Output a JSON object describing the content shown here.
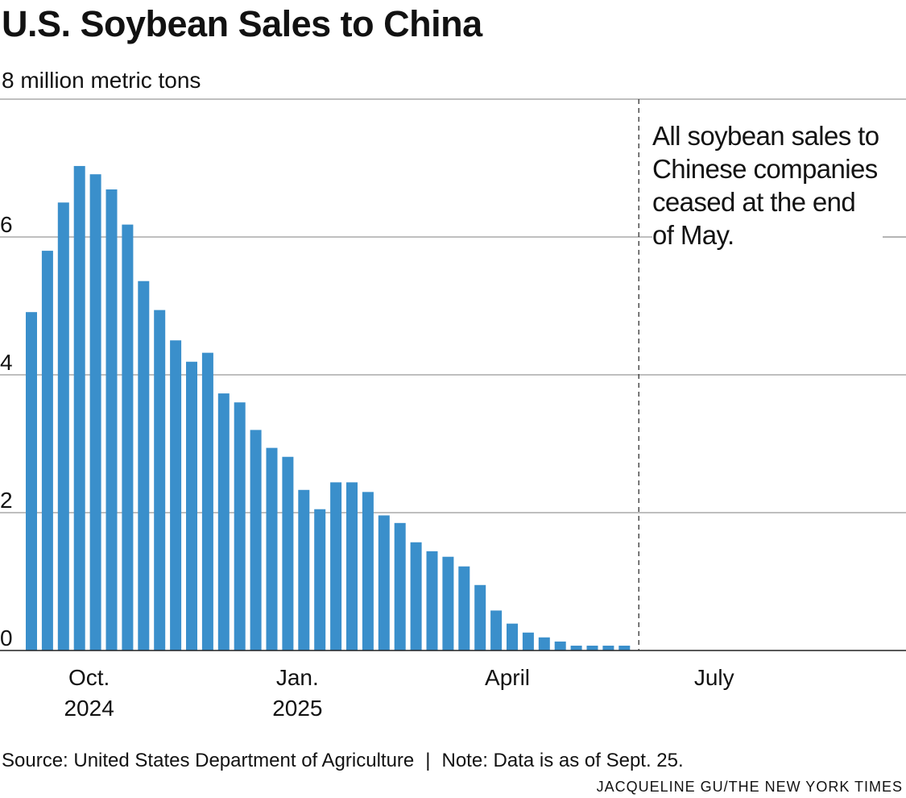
{
  "title": "U.S. Soybean Sales to China",
  "source": "Source: United States Department of Agriculture",
  "note": "Note: Data is as of Sept. 25.",
  "credit": "JACQUELINE GU/THE NEW YORK TIMES",
  "chart_data": {
    "type": "bar",
    "title": "U.S. Soybean Sales to China",
    "ylabel": "8 million metric tons",
    "ylim": [
      0,
      8
    ],
    "yticks": [
      {
        "value": 0,
        "label": "0"
      },
      {
        "value": 2,
        "label": "2"
      },
      {
        "value": 4,
        "label": "4"
      },
      {
        "value": 6,
        "label": "6"
      },
      {
        "value": 8,
        "label": "8 million metric tons"
      }
    ],
    "grid": true,
    "bar_color": "#3a8fcb",
    "x_unit": "week",
    "xticks": [
      {
        "week": 3.6,
        "line1": "Oct.",
        "line2": "2024"
      },
      {
        "week": 16.6,
        "line1": "Jan.",
        "line2": "2025"
      },
      {
        "week": 29.7,
        "line1": "April",
        "line2": ""
      },
      {
        "week": 42.6,
        "line1": "July",
        "line2": ""
      }
    ],
    "values": [
      4.91,
      5.8,
      6.5,
      7.03,
      6.91,
      6.69,
      6.18,
      5.36,
      4.94,
      4.5,
      4.19,
      4.32,
      3.73,
      3.6,
      3.2,
      2.94,
      2.81,
      2.33,
      2.05,
      2.44,
      2.44,
      2.3,
      1.96,
      1.85,
      1.57,
      1.44,
      1.36,
      1.22,
      0.95,
      0.58,
      0.39,
      0.26,
      0.19,
      0.13,
      0.07,
      0.07,
      0.07,
      0.07
    ],
    "annotation": {
      "week": 37.9,
      "text": [
        "All soybean sales to",
        "Chinese companies",
        "ceased at the end",
        "of May."
      ]
    }
  }
}
